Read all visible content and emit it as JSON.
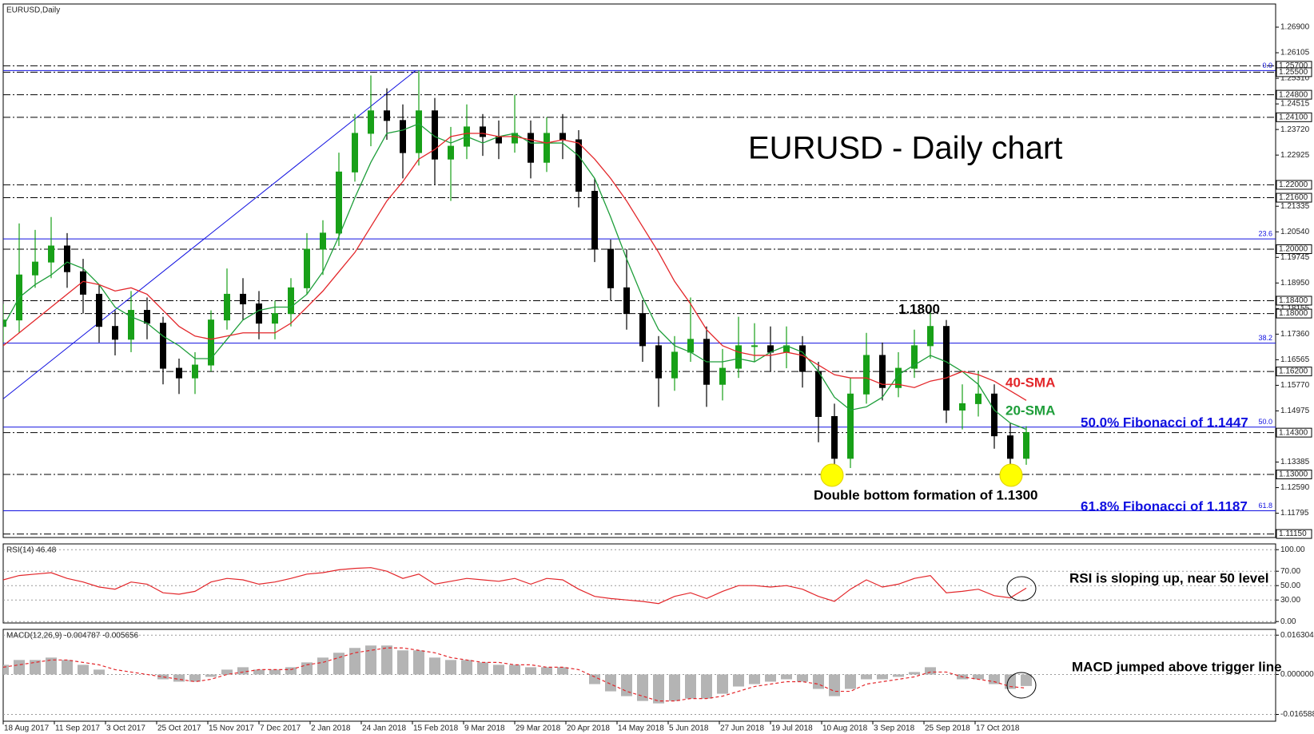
{
  "chart_data": [
    {
      "type": "candlestick",
      "title": "EURUSD - Daily chart",
      "symbol": "EURUSD,Daily",
      "x": [
        0,
        5,
        10,
        15,
        20,
        25,
        30,
        35,
        40,
        45,
        50,
        55,
        60,
        65,
        70,
        75,
        80,
        85,
        90,
        95,
        100,
        105,
        110,
        115,
        120,
        125,
        130,
        135,
        140,
        145,
        150,
        155,
        160,
        165,
        170,
        175,
        180,
        185,
        190,
        195,
        200,
        205,
        210,
        215,
        220,
        225,
        230,
        235,
        240,
        245,
        250,
        255,
        260,
        265,
        270,
        275,
        280,
        285,
        290,
        295,
        300,
        305,
        310,
        315,
        320
      ],
      "open": [
        1.176,
        1.178,
        1.192,
        1.196,
        1.201,
        1.193,
        1.186,
        1.176,
        1.172,
        1.181,
        1.177,
        1.163,
        1.16,
        1.164,
        1.178,
        1.186,
        1.183,
        1.177,
        1.18,
        1.188,
        1.2,
        1.205,
        1.224,
        1.236,
        1.243,
        1.24,
        1.23,
        1.243,
        1.228,
        1.232,
        1.238,
        1.235,
        1.233,
        1.236,
        1.227,
        1.236,
        1.234,
        1.218,
        1.2,
        1.188,
        1.18,
        1.17,
        1.16,
        1.168,
        1.172,
        1.158,
        1.163,
        1.17,
        1.17,
        1.168,
        1.17,
        1.162,
        1.148,
        1.135,
        1.155,
        1.167,
        1.157,
        1.163,
        1.17,
        1.176,
        1.15,
        1.152,
        1.155,
        1.142,
        1.135
      ],
      "high": [
        1.183,
        1.208,
        1.206,
        1.21,
        1.205,
        1.197,
        1.189,
        1.181,
        1.187,
        1.185,
        1.179,
        1.166,
        1.168,
        1.181,
        1.194,
        1.191,
        1.187,
        1.184,
        1.191,
        1.205,
        1.209,
        1.23,
        1.242,
        1.254,
        1.25,
        1.245,
        1.2555,
        1.247,
        1.238,
        1.245,
        1.242,
        1.24,
        1.248,
        1.24,
        1.241,
        1.242,
        1.237,
        1.222,
        1.203,
        1.2,
        1.184,
        1.173,
        1.173,
        1.185,
        1.176,
        1.169,
        1.179,
        1.177,
        1.176,
        1.176,
        1.173,
        1.165,
        1.152,
        1.16,
        1.174,
        1.171,
        1.168,
        1.175,
        1.1815,
        1.178,
        1.158,
        1.162,
        1.158,
        1.146,
        1.145
      ],
      "low": [
        1.171,
        1.174,
        1.188,
        1.191,
        1.188,
        1.18,
        1.171,
        1.167,
        1.168,
        1.172,
        1.158,
        1.155,
        1.155,
        1.162,
        1.175,
        1.178,
        1.172,
        1.172,
        1.176,
        1.186,
        1.192,
        1.201,
        1.221,
        1.232,
        1.234,
        1.222,
        1.226,
        1.22,
        1.215,
        1.228,
        1.229,
        1.228,
        1.23,
        1.222,
        1.224,
        1.228,
        1.213,
        1.196,
        1.184,
        1.175,
        1.165,
        1.151,
        1.156,
        1.165,
        1.151,
        1.153,
        1.16,
        1.165,
        1.162,
        1.163,
        1.157,
        1.14,
        1.13,
        1.132,
        1.152,
        1.153,
        1.154,
        1.16,
        1.166,
        1.146,
        1.144,
        1.148,
        1.138,
        1.1302,
        1.133
      ],
      "close": [
        1.178,
        1.192,
        1.196,
        1.201,
        1.193,
        1.186,
        1.176,
        1.172,
        1.181,
        1.177,
        1.163,
        1.16,
        1.164,
        1.178,
        1.186,
        1.183,
        1.177,
        1.18,
        1.188,
        1.2,
        1.205,
        1.224,
        1.236,
        1.243,
        1.24,
        1.23,
        1.243,
        1.228,
        1.232,
        1.238,
        1.235,
        1.233,
        1.236,
        1.227,
        1.236,
        1.234,
        1.218,
        1.2,
        1.188,
        1.18,
        1.17,
        1.16,
        1.168,
        1.172,
        1.158,
        1.163,
        1.17,
        1.17,
        1.168,
        1.17,
        1.162,
        1.148,
        1.135,
        1.155,
        1.167,
        1.157,
        1.163,
        1.17,
        1.176,
        1.15,
        1.152,
        1.155,
        1.142,
        1.135,
        1.143
      ],
      "up_color": "#18a018",
      "down_color": "#000000",
      "series": [
        {
          "name": "20-SMA",
          "color": "#1e9e3a",
          "values": [
            1.176,
            1.185,
            1.189,
            1.192,
            1.196,
            1.194,
            1.189,
            1.182,
            1.179,
            1.177,
            1.173,
            1.17,
            1.166,
            1.166,
            1.172,
            1.178,
            1.181,
            1.182,
            1.182,
            1.186,
            1.193,
            1.204,
            1.216,
            1.227,
            1.236,
            1.237,
            1.239,
            1.235,
            1.233,
            1.235,
            1.233,
            1.235,
            1.236,
            1.233,
            1.233,
            1.233,
            1.229,
            1.222,
            1.21,
            1.197,
            1.185,
            1.175,
            1.17,
            1.168,
            1.165,
            1.165,
            1.166,
            1.165,
            1.168,
            1.17,
            1.168,
            1.162,
            1.154,
            1.15,
            1.151,
            1.154,
            1.161,
            1.164,
            1.167,
            1.165,
            1.162,
            1.158,
            1.15,
            1.146,
            1.144
          ]
        },
        {
          "name": "40-SMA",
          "color": "#e3262a",
          "values": [
            1.17,
            1.174,
            1.178,
            1.182,
            1.186,
            1.19,
            1.189,
            1.187,
            1.188,
            1.186,
            1.181,
            1.176,
            1.173,
            1.172,
            1.173,
            1.174,
            1.174,
            1.174,
            1.177,
            1.182,
            1.187,
            1.193,
            1.199,
            1.207,
            1.215,
            1.221,
            1.228,
            1.231,
            1.235,
            1.236,
            1.236,
            1.235,
            1.235,
            1.234,
            1.233,
            1.234,
            1.233,
            1.228,
            1.222,
            1.215,
            1.207,
            1.199,
            1.19,
            1.183,
            1.175,
            1.17,
            1.168,
            1.167,
            1.167,
            1.168,
            1.167,
            1.164,
            1.161,
            1.16,
            1.16,
            1.158,
            1.158,
            1.157,
            1.159,
            1.16,
            1.162,
            1.161,
            1.159,
            1.156,
            1.153
          ]
        }
      ],
      "xlim": [
        0,
        398
      ],
      "xticks": [
        {
          "value": 0,
          "label": "18 Aug 2017"
        },
        {
          "value": 16,
          "label": "11 Sep 2017"
        },
        {
          "value": 32,
          "label": "3 Oct 2017"
        },
        {
          "value": 48,
          "label": "25 Oct 2017"
        },
        {
          "value": 64,
          "label": "15 Nov 2017"
        },
        {
          "value": 80,
          "label": "7 Dec 2017"
        },
        {
          "value": 96,
          "label": "2 Jan 2018"
        },
        {
          "value": 112,
          "label": "24 Jan 2018"
        },
        {
          "value": 128,
          "label": "15 Feb 2018"
        },
        {
          "value": 144,
          "label": "9 Mar 2018"
        },
        {
          "value": 160,
          "label": "29 Mar 2018"
        },
        {
          "value": 176,
          "label": "20 Apr 2018"
        },
        {
          "value": 192,
          "label": "14 May 2018"
        },
        {
          "value": 208,
          "label": "5 Jun 2018"
        },
        {
          "value": 224,
          "label": "27 Jun 2018"
        },
        {
          "value": 240,
          "label": "19 Jul 2018"
        },
        {
          "value": 256,
          "label": "10 Aug 2018"
        },
        {
          "value": 272,
          "label": "3 Sep 2018"
        },
        {
          "value": 288,
          "label": "25 Sep 2018"
        },
        {
          "value": 304,
          "label": "17 Oct 2018"
        }
      ],
      "ylim": [
        1.1104,
        1.2762
      ],
      "yticks": [
        {
          "value": 1.269,
          "label": "1.26900"
        },
        {
          "value": 1.26105,
          "label": "1.26105"
        },
        {
          "value": 1.2531,
          "label": "1.25310"
        },
        {
          "value": 1.24515,
          "label": "1.24515"
        },
        {
          "value": 1.2372,
          "label": "1.23720"
        },
        {
          "value": 1.22925,
          "label": "1.22925"
        },
        {
          "value": 1.21335,
          "label": "1.21335"
        },
        {
          "value": 1.2054,
          "label": "1.20540"
        },
        {
          "value": 1.19745,
          "label": "1.19745"
        },
        {
          "value": 1.1895,
          "label": "1.18950"
        },
        {
          "value": 1.18155,
          "label": "1.18155"
        },
        {
          "value": 1.1736,
          "label": "1.17360"
        },
        {
          "value": 1.16565,
          "label": "1.16565"
        },
        {
          "value": 1.1577,
          "label": "1.15770"
        },
        {
          "value": 1.14975,
          "label": "1.14975"
        },
        {
          "value": 1.13385,
          "label": "1.13385"
        },
        {
          "value": 1.1259,
          "label": "1.12590"
        },
        {
          "value": 1.11795,
          "label": "1.11795"
        }
      ],
      "grid": false,
      "levels": [
        {
          "value": 1.257,
          "label": "1.25700"
        },
        {
          "value": 1.255,
          "label": "1.25500"
        },
        {
          "value": 1.248,
          "label": "1.24800"
        },
        {
          "value": 1.241,
          "label": "1.24100"
        },
        {
          "value": 1.22,
          "label": "1.22000"
        },
        {
          "value": 1.216,
          "label": "1.21600"
        },
        {
          "value": 1.2,
          "label": "1.20000"
        },
        {
          "value": 1.184,
          "label": "1.18400"
        },
        {
          "value": 1.18,
          "label": "1.18000"
        },
        {
          "value": 1.162,
          "label": "1.16200"
        },
        {
          "value": 1.143,
          "label": "1.14300"
        },
        {
          "value": 1.13,
          "label": "1.13000"
        },
        {
          "value": 1.1115,
          "label": "1.11150"
        }
      ],
      "fibonacci": [
        {
          "value": 1.2555,
          "label": "0.0"
        },
        {
          "value": 1.2032,
          "label": "23.6"
        },
        {
          "value": 1.1708,
          "label": "38.2"
        },
        {
          "value": 1.1447,
          "label": "50.0"
        },
        {
          "value": 1.1187,
          "label": "61.8"
        }
      ],
      "fib_color": "#1010e0",
      "trendline": {
        "x": [
          0,
          129
        ],
        "y": [
          1.1535,
          1.2555
        ],
        "color": "#1010e0"
      },
      "annotations": [
        "1.1800",
        "50.0% Fibonacci of 1.1447",
        "Double bottom formation of 1.1300",
        "61.8% Fibonacci of 1.1187"
      ]
    },
    {
      "type": "line",
      "title": "RSI(14) 46.48",
      "values": [
        58,
        64,
        66,
        68,
        60,
        55,
        48,
        45,
        55,
        52,
        40,
        38,
        42,
        55,
        60,
        58,
        52,
        55,
        60,
        66,
        68,
        72,
        74,
        75,
        70,
        60,
        66,
        52,
        56,
        60,
        58,
        56,
        60,
        52,
        60,
        58,
        45,
        35,
        32,
        30,
        28,
        25,
        35,
        40,
        32,
        42,
        50,
        50,
        48,
        50,
        45,
        35,
        28,
        45,
        58,
        48,
        52,
        60,
        64,
        40,
        42,
        45,
        36,
        33,
        46.48
      ],
      "color": "#e3262a",
      "ylim": [
        -2,
        108
      ],
      "yticks": [
        {
          "value": 100,
          "label": "100.00"
        },
        {
          "value": 70,
          "label": "70.00"
        },
        {
          "value": 50,
          "label": "50.00"
        },
        {
          "value": 30,
          "label": "30.00"
        },
        {
          "value": 0,
          "label": "0.00"
        }
      ],
      "grid": true,
      "annotation": "RSI is sloping up, near 50 level"
    },
    {
      "type": "macd",
      "title": "MACD(12,26,9) -0.004787 -0.005656",
      "histogram": [
        0.004,
        0.006,
        0.006,
        0.007,
        0.006,
        0.004,
        0.002,
        0,
        0,
        0,
        -0.002,
        -0.003,
        -0.003,
        -0.001,
        0.002,
        0.003,
        0.002,
        0.002,
        0.003,
        0.005,
        0.007,
        0.009,
        0.011,
        0.012,
        0.012,
        0.01,
        0.01,
        0.007,
        0.006,
        0.006,
        0.005,
        0.004,
        0.004,
        0.003,
        0.003,
        0.003,
        0,
        -0.004,
        -0.007,
        -0.009,
        -0.011,
        -0.012,
        -0.011,
        -0.01,
        -0.01,
        -0.008,
        -0.005,
        -0.004,
        -0.003,
        -0.002,
        -0.003,
        -0.006,
        -0.009,
        -0.006,
        -0.002,
        -0.002,
        -0.001,
        0.001,
        0.003,
        0,
        -0.002,
        -0.002,
        -0.004,
        -0.006,
        -0.004787
      ],
      "signal": [
        0.003,
        0.004,
        0.005,
        0.006,
        0.006,
        0.005,
        0.004,
        0.002,
        0.001,
        0,
        -0.001,
        -0.002,
        -0.003,
        -0.002,
        0,
        0.001,
        0.002,
        0.002,
        0.002,
        0.004,
        0.005,
        0.007,
        0.009,
        0.01,
        0.011,
        0.011,
        0.01,
        0.009,
        0.007,
        0.006,
        0.005,
        0.005,
        0.004,
        0.004,
        0.003,
        0.003,
        0.002,
        -0.001,
        -0.004,
        -0.007,
        -0.009,
        -0.011,
        -0.011,
        -0.01,
        -0.01,
        -0.009,
        -0.007,
        -0.005,
        -0.004,
        -0.003,
        -0.003,
        -0.004,
        -0.007,
        -0.007,
        -0.004,
        -0.003,
        -0.002,
        -0.001,
        0.001,
        0.001,
        -0.001,
        -0.002,
        -0.003,
        -0.005,
        -0.005656
      ],
      "histogram_color": "#b4b4b4",
      "signal_color": "#e3262a",
      "ylim": [
        -0.0194,
        0.0187
      ],
      "yticks": [
        0.016304,
        {
          "value": 0,
          "label": "0.000000"
        },
        -0.016588
      ],
      "grid": true,
      "annotation": "MACD jumped above trigger line"
    }
  ]
}
